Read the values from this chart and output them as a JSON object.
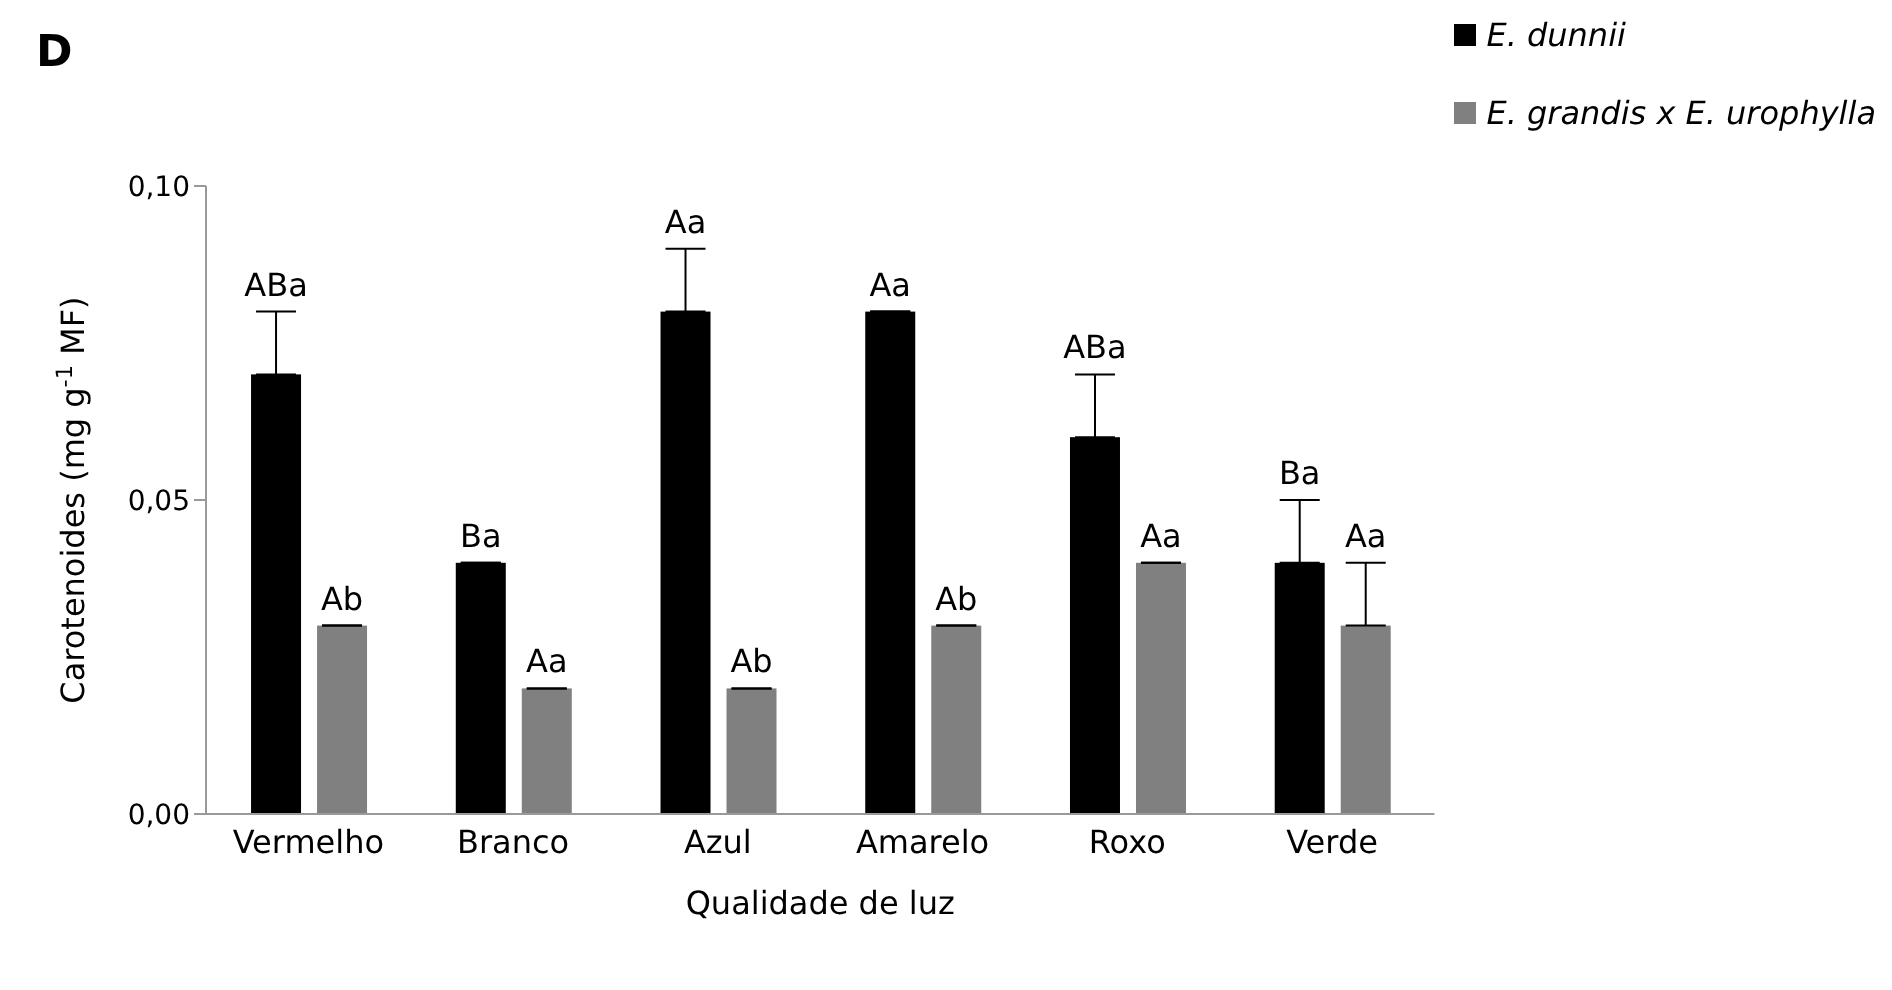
{
  "chart_data": {
    "type": "bar",
    "title": "D",
    "xlabel": "Qualidade de luz",
    "ylabel": "Carotenoides (mg g$^{-1}$ MF)",
    "categories": [
      "Vermelho",
      "Branco",
      "Azul",
      "Amarelo",
      "Roxo",
      "Verde"
    ],
    "series": [
      {
        "name": "E. dunnii",
        "color": "#000000",
        "values": [
          0.07,
          0.04,
          0.08,
          0.08,
          0.06,
          0.04
        ],
        "errors": [
          [
            0.07,
            0.08
          ],
          [
            0.04,
            0.04
          ],
          [
            0.08,
            0.09
          ],
          [
            0.08,
            0.08
          ],
          [
            0.06,
            0.07
          ],
          [
            0.04,
            0.05
          ]
        ],
        "value_labels": [
          "ABa",
          "Ba",
          "Aa",
          "Aa",
          "ABa",
          "Ba"
        ]
      },
      {
        "name": "E. grandis x E. urophylla",
        "color": "#808080",
        "values": [
          0.03,
          0.02,
          0.02,
          0.03,
          0.04,
          0.03
        ],
        "errors": [
          [
            0.03,
            0.03
          ],
          [
            0.02,
            0.02
          ],
          [
            0.02,
            0.02
          ],
          [
            0.03,
            0.03
          ],
          [
            0.04,
            0.04
          ],
          [
            0.03,
            0.04
          ]
        ],
        "value_labels": [
          "Ab",
          "Aa",
          "Ab",
          "Ab",
          "Aa",
          "Aa"
        ]
      }
    ],
    "ylim": [
      0,
      0.1
    ],
    "yticks": [
      {
        "value": 0,
        "label": "0,00"
      },
      {
        "value": 0.05,
        "label": "0,05"
      },
      {
        "value": 0.1,
        "label": "0,10"
      }
    ],
    "grid": false,
    "legend": "top right"
  }
}
